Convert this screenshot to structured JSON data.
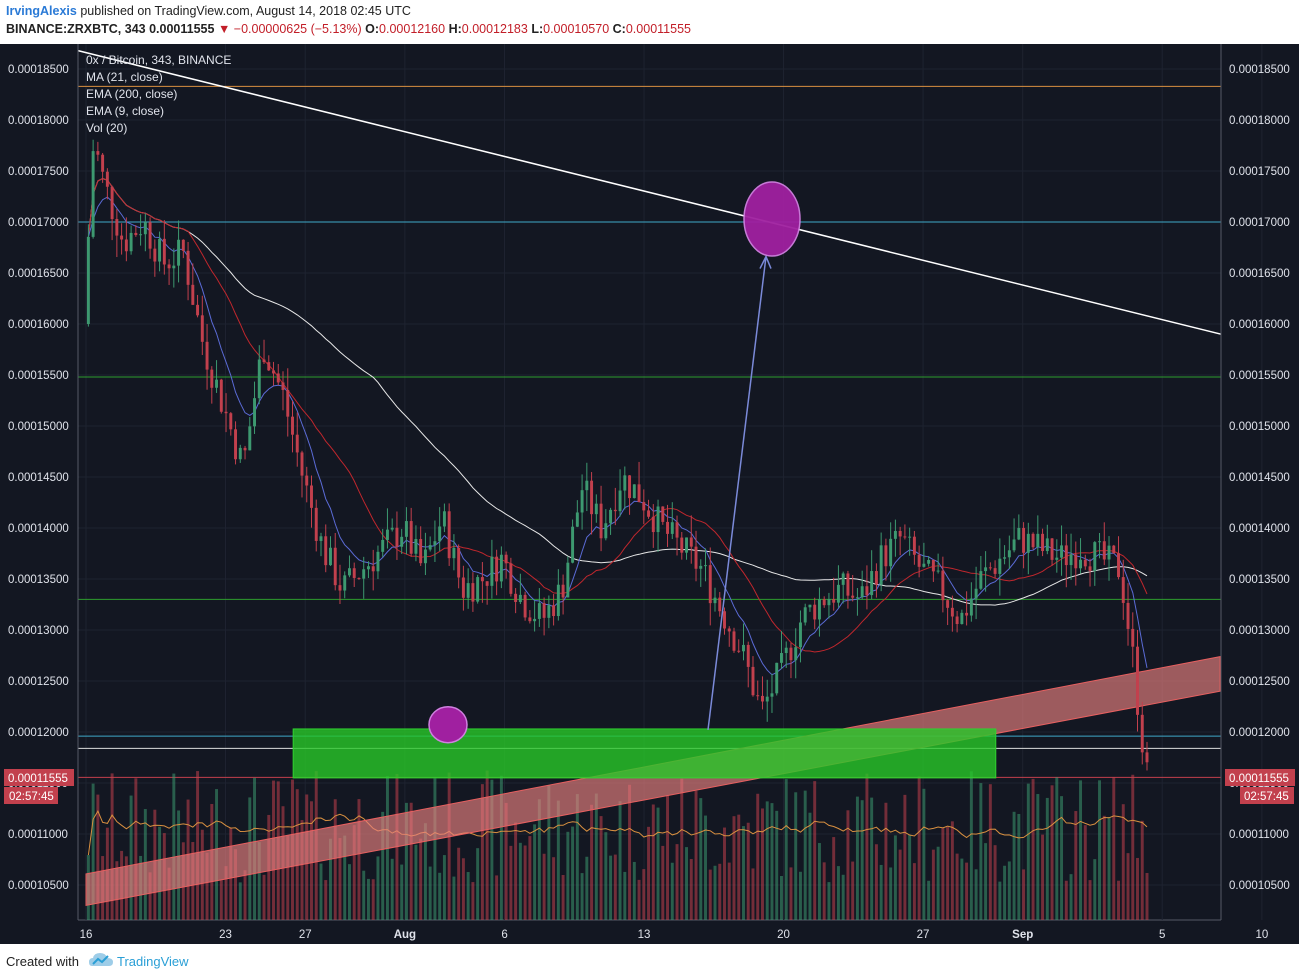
{
  "header": {
    "author": "IrvingAlexis",
    "published_text": "published on TradingView.com, August 14, 2018 02:45 UTC",
    "symbol": "BINANCE:ZRXBTC, 343",
    "last_price": "0.00011555",
    "change": "▼ −0.00000625 (−5.13%)",
    "ohlc": [
      {
        "label": "O:",
        "value": "0.00012160"
      },
      {
        "label": "H:",
        "value": "0.00012183"
      },
      {
        "label": "L:",
        "value": "0.00010570"
      },
      {
        "label": "C:",
        "value": "0.00011555"
      }
    ]
  },
  "legend": {
    "title": "0x / Bitcoin, 343, BINANCE",
    "studies": [
      "MA (21, close)",
      "EMA (200, close)",
      "EMA (9, close)",
      "Vol (20)"
    ]
  },
  "price_tag": {
    "value": "0.00011555",
    "countdown": "02:57:45"
  },
  "colors": {
    "background": "#131722",
    "up": "#3d9970",
    "down": "#c2404d",
    "grid": "#1e2330",
    "axis_text": "#e0e3eb",
    "ma21": "#c0272d",
    "ema200": "#e8e8e8",
    "ema9": "#5b6bd6",
    "green_zone": "#28c828",
    "channel": "#e88080",
    "target": "#a020a0"
  },
  "chart_data": {
    "type": "candlestick",
    "symbol": "BINANCE:ZRXBTC",
    "interval": "343",
    "y_ticks": [
      "0.00010500",
      "0.00011000",
      "0.00011500",
      "0.00012000",
      "0.00012500",
      "0.00013000",
      "0.00013500",
      "0.00014000",
      "0.00014500",
      "0.00015000",
      "0.00015500",
      "0.00016000",
      "0.00016500",
      "0.00017000",
      "0.00017500",
      "0.00018000",
      "0.00018500"
    ],
    "ylim": [
      0.000102,
      0.000186
    ],
    "x_ticks": [
      "16",
      "23",
      "27",
      "Aug",
      "6",
      "13",
      "20",
      "27",
      "Sep",
      "5",
      "10"
    ],
    "horizontal_levels": [
      {
        "price": 0.0001833,
        "color": "#d99040"
      },
      {
        "price": 0.00017,
        "color": "#3fa8c8"
      },
      {
        "price": 0.0001548,
        "color": "#2e9e2e"
      },
      {
        "price": 0.000133,
        "color": "#2e9e2e"
      },
      {
        "price": 0.0001196,
        "color": "#3fa8c8"
      },
      {
        "price": 0.0001184,
        "color": "#dddddd"
      },
      {
        "price": 0.00011555,
        "color": "#c2404d"
      }
    ],
    "annotations": {
      "green_zone": {
        "from_date": "Jul 28",
        "to_date": "Aug 31",
        "top": 0.0001203,
        "bottom": 0.0001155
      },
      "target_circle": {
        "date": "Aug 19",
        "price": 0.00017
      },
      "low_circle": {
        "date": "Aug 3",
        "price": 0.0001213
      },
      "arrow": {
        "from": [
          "Aug 15",
          0.0001202
        ],
        "to": [
          "Aug 19",
          0.0001672
        ]
      },
      "downtrend_line": {
        "from": [
          "Jul 16",
          0.0001868
        ],
        "to": [
          "Sep 10",
          0.000159
        ]
      },
      "rising_channel": {
        "lower": [
          [
            "Jul 16",
            0.000103
          ],
          [
            "Sep 10",
            0.000124
          ]
        ],
        "upper": [
          [
            "Jul 16",
            0.0001055
          ],
          [
            "Sep 10",
            0.000127
          ]
        ]
      }
    },
    "volume_note": "Vol (20)"
  }
}
